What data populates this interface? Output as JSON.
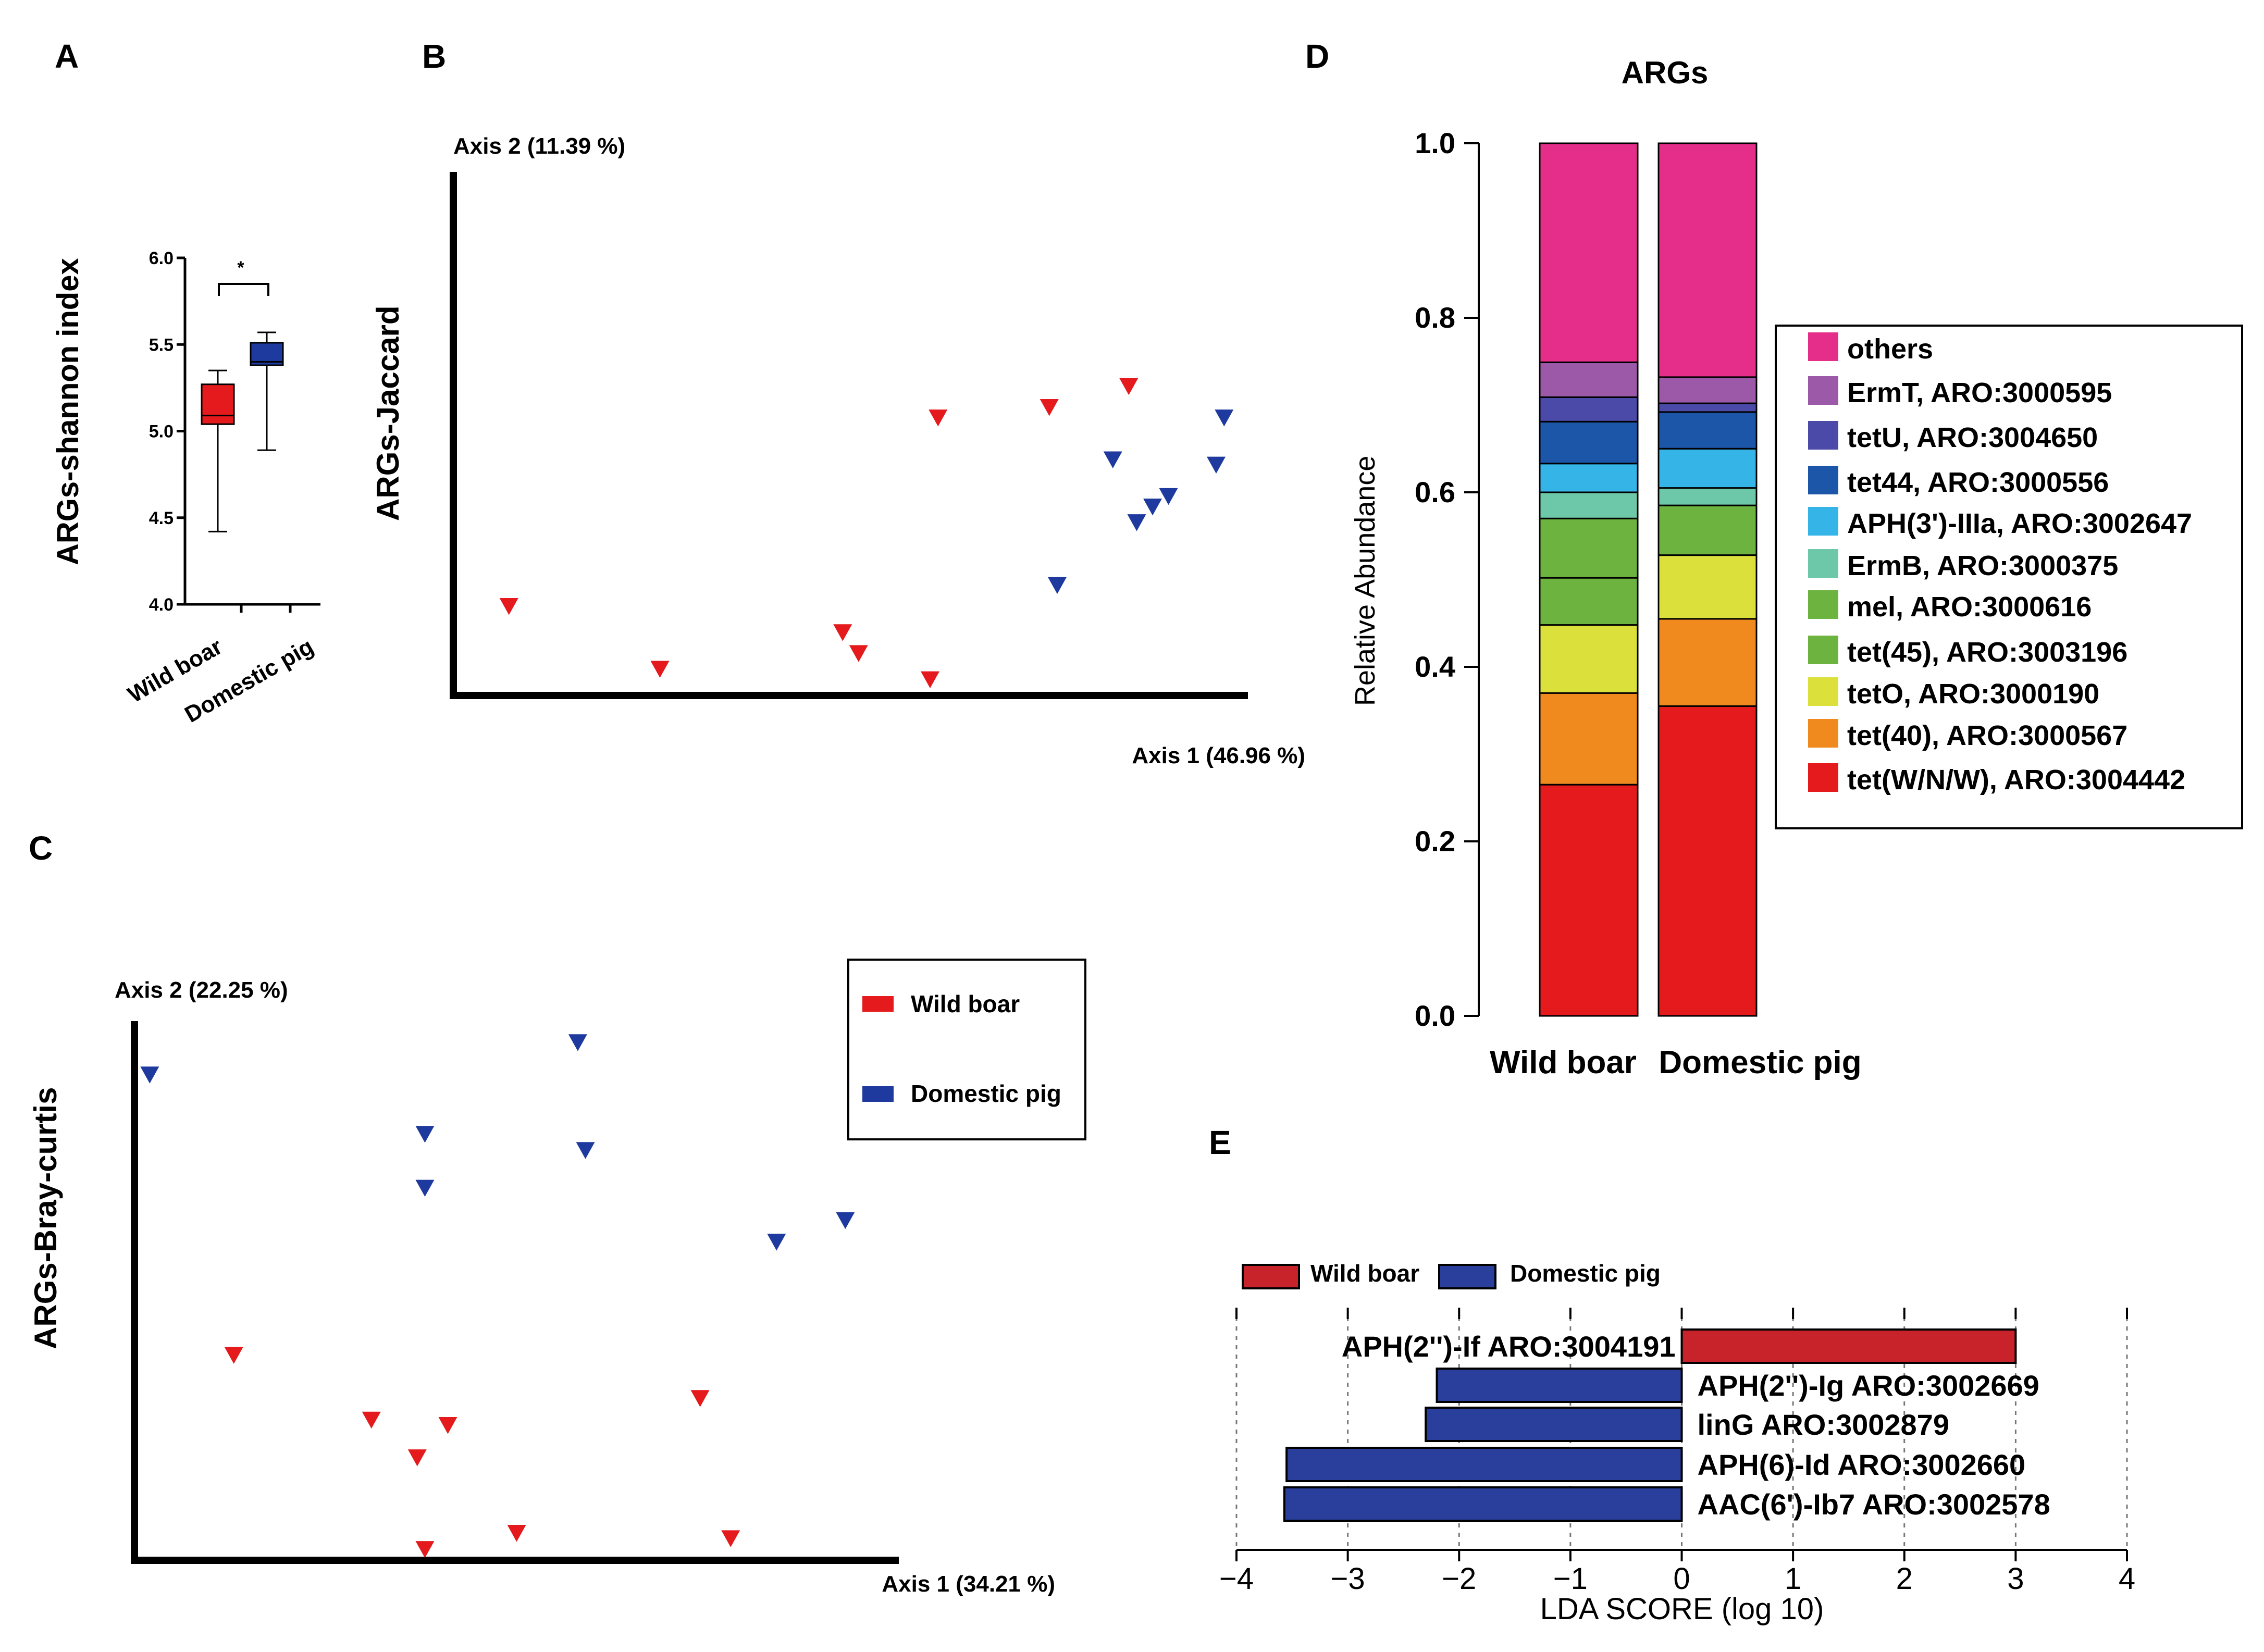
{
  "colors": {
    "wild": "#e41a1c",
    "domestic": "#1f3a9e",
    "wild_bar": "#c8222a",
    "domestic_bar": "#2a3f9b"
  },
  "panel_labels": [
    "A",
    "B",
    "C",
    "D",
    "E"
  ],
  "chart_data": [
    {
      "id": "A",
      "type": "box",
      "ylabel": "ARGs-shannon index",
      "ylim": [
        4.0,
        6.0
      ],
      "yticks": [
        "4.0",
        "4.5",
        "5.0",
        "5.5",
        "6.0"
      ],
      "categories": [
        "Wild boar",
        "Domestic pig"
      ],
      "boxes": [
        {
          "name": "Wild boar",
          "min": 4.42,
          "q1": 5.04,
          "median": 5.09,
          "q3": 5.27,
          "max": 5.35
        },
        {
          "name": "Domestic pig",
          "min": 4.89,
          "q1": 5.38,
          "median": 5.4,
          "q3": 5.51,
          "max": 5.57
        }
      ],
      "significance": "*"
    },
    {
      "id": "B",
      "type": "scatter",
      "ylabel": "ARGs-Jaccard",
      "xlabel": "Axis 1 (46.96 %)",
      "axis2_label": "Axis 2 (11.39 %)",
      "xlim": [
        0,
        100
      ],
      "ylim": [
        0,
        100
      ],
      "series": [
        {
          "name": "Wild boar",
          "points": [
            [
              7,
              17
            ],
            [
              26,
              5
            ],
            [
              49,
              12
            ],
            [
              51,
              8
            ],
            [
              60,
              3
            ],
            [
              61,
              53
            ],
            [
              75,
              55
            ],
            [
              85,
              59
            ]
          ]
        },
        {
          "name": "Domestic pig",
          "points": [
            [
              76,
              21
            ],
            [
              83,
              45
            ],
            [
              86,
              33
            ],
            [
              88,
              36
            ],
            [
              90,
              38
            ],
            [
              96,
              44
            ],
            [
              97,
              53
            ]
          ]
        }
      ]
    },
    {
      "id": "C",
      "type": "scatter",
      "ylabel": "ARGs-Bray-curtis",
      "xlabel": "Axis 1 (34.21 %)",
      "axis2_label": "Axis 2 (22.25 %)",
      "xlim": [
        0,
        100
      ],
      "ylim": [
        0,
        100
      ],
      "legend": [
        "Wild boar",
        "Domestic pig"
      ],
      "series": [
        {
          "name": "Wild boar",
          "points": [
            [
              13,
              38
            ],
            [
              31,
              26
            ],
            [
              37,
              19
            ],
            [
              41,
              25
            ],
            [
              38,
              2
            ],
            [
              50,
              5
            ],
            [
              74,
              30
            ],
            [
              78,
              4
            ]
          ]
        },
        {
          "name": "Domestic pig",
          "points": [
            [
              2,
              90
            ],
            [
              38,
              79
            ],
            [
              38,
              69
            ],
            [
              58,
              96
            ],
            [
              59,
              76
            ],
            [
              84,
              59
            ],
            [
              93,
              63
            ]
          ]
        }
      ]
    },
    {
      "id": "D",
      "type": "stacked_bar",
      "title": "ARGs",
      "ylabel": "Relative Abundance",
      "ylim": [
        0,
        1
      ],
      "yticks": [
        "0.0",
        "0.2",
        "0.4",
        "0.6",
        "0.8",
        "1.0"
      ],
      "categories": [
        "Wild boar",
        "Domestic pig"
      ],
      "series": [
        {
          "name": "tet(W/N/W), ARO:3004442",
          "color": "#e41a1c",
          "values": [
            0.265,
            0.355
          ]
        },
        {
          "name": "tet(40), ARO:3000567",
          "color": "#f08a1e",
          "values": [
            0.105,
            0.1
          ]
        },
        {
          "name": "tetO, ARO:3000190",
          "color": "#dbe03a",
          "values": [
            0.078,
            0.073
          ]
        },
        {
          "name": "tet(45), ARO:3003196",
          "color": "#6db33f",
          "values": [
            0.054,
            0.0
          ]
        },
        {
          "name": "mel, ARO:3000616",
          "color": "#6db33f",
          "values": [
            0.068,
            0.057
          ]
        },
        {
          "name": "ErmB, ARO:3000375",
          "color": "#6cc8a8",
          "values": [
            0.03,
            0.02
          ]
        },
        {
          "name": "APH(3')-IIIa, ARO:3002647",
          "color": "#35b4e8",
          "values": [
            0.033,
            0.045
          ]
        },
        {
          "name": "tet44, ARO:3000556",
          "color": "#1c56a8",
          "values": [
            0.048,
            0.042
          ]
        },
        {
          "name": "tetU, ARO:3004650",
          "color": "#4b4aa8",
          "values": [
            0.028,
            0.01
          ]
        },
        {
          "name": "ErmT, ARO:3000595",
          "color": "#9b59a8",
          "values": [
            0.04,
            0.03
          ]
        },
        {
          "name": "others",
          "color": "#e52e8a",
          "values": [
            0.251,
            0.268
          ]
        }
      ],
      "legend_order": [
        "others",
        "ErmT, ARO:3000595",
        "tetU, ARO:3004650",
        "tet44, ARO:3000556",
        "APH(3')-IIIa, ARO:3002647",
        "ErmB, ARO:3000375",
        "mel, ARO:3000616",
        "tet(45), ARO:3003196",
        "tetO, ARO:3000190",
        "tet(40), ARO:3000567",
        "tet(W/N/W), ARO:3004442"
      ]
    },
    {
      "id": "E",
      "type": "bar_horizontal",
      "xlabel": "LDA SCORE (log 10)",
      "xlim": [
        -4,
        4
      ],
      "xticks": [
        "−4",
        "−3",
        "−2",
        "−1",
        "0",
        "1",
        "2",
        "3",
        "4"
      ],
      "legend": [
        "Wild boar",
        "Domestic pig"
      ],
      "bars": [
        {
          "label": "APH(2'')-If ARO:3004191",
          "value": 3.0,
          "group": "Wild boar"
        },
        {
          "label": "APH(2'')-Ig ARO:3002669",
          "value": -2.2,
          "group": "Domestic pig"
        },
        {
          "label": "linG ARO:3002879",
          "value": -2.3,
          "group": "Domestic pig"
        },
        {
          "label": "APH(6)-Id ARO:3002660",
          "value": -3.55,
          "group": "Domestic pig"
        },
        {
          "label": "AAC(6')-Ib7 ARO:3002578",
          "value": -3.57,
          "group": "Domestic pig"
        }
      ]
    }
  ]
}
